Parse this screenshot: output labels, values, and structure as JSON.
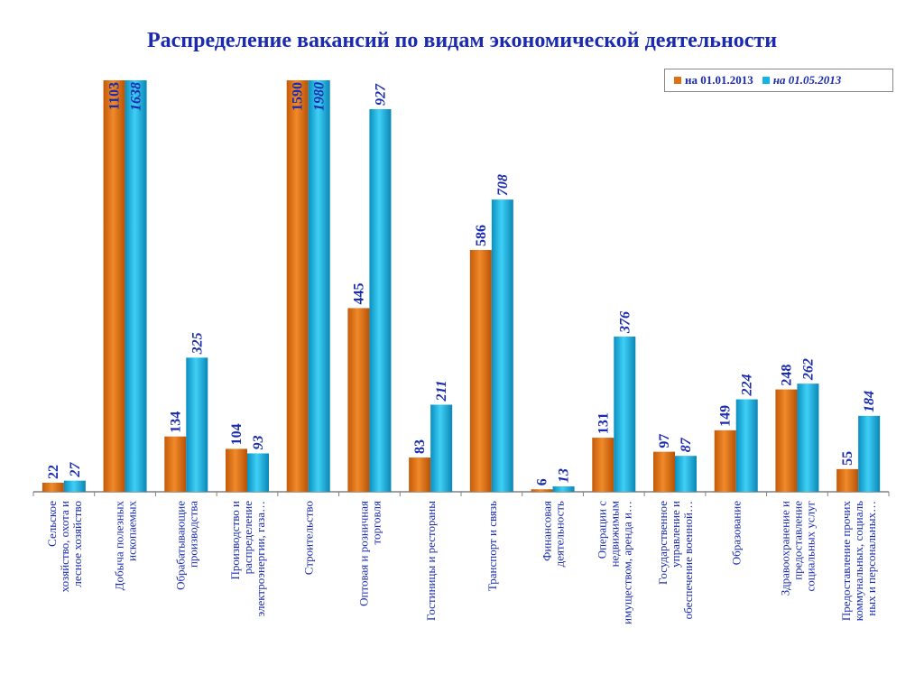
{
  "chart_data": {
    "type": "bar",
    "title": "Распределение вакансий  по видам экономической деятельности",
    "xlabel": "",
    "ylabel": "",
    "legend_position": "top-right",
    "grid": false,
    "categories": [
      [
        "Сельское",
        "хозяйство, охота и",
        "лесное хозяйство"
      ],
      [
        "Добыча полезных",
        "ископаемых"
      ],
      [
        "Обрабатывающие",
        "производства"
      ],
      [
        "Производство и",
        "распределение",
        "электроэнергии, газа…"
      ],
      [
        "Строительство"
      ],
      [
        "Оптовая и розничная",
        "торговля"
      ],
      [
        "Гостиницы и рестораны"
      ],
      [
        "Транспорт и связь"
      ],
      [
        "Финансовая",
        "деятельность"
      ],
      [
        "Операции с",
        "недвижимым",
        "имуществом, аренда и…"
      ],
      [
        "Государственное",
        "управление и",
        "обеспечение военной…"
      ],
      [
        "Образование"
      ],
      [
        "Здравоохранение и",
        "предоставление",
        "социальных услуг"
      ],
      [
        "Предоставление прочих",
        "коммунальных, социаль",
        "ных и персональных…"
      ]
    ],
    "series": [
      {
        "name": "на 01.01.2013",
        "color": "#e07010",
        "values": [
          22,
          1103,
          134,
          104,
          1590,
          445,
          83,
          586,
          6,
          131,
          97,
          149,
          248,
          55
        ]
      },
      {
        "name": "на 01.05.2013",
        "color": "#10b4e6",
        "values": [
          27,
          1638,
          325,
          93,
          1980,
          927,
          211,
          708,
          13,
          376,
          87,
          224,
          262,
          184
        ]
      }
    ],
    "axis_break": {
      "note": "bars for Добыча полезных ископаемых and Строительство are truncated at the top of the plot",
      "truncated_categories": [
        1,
        4
      ]
    },
    "ylim": [
      0,
      1000
    ]
  }
}
